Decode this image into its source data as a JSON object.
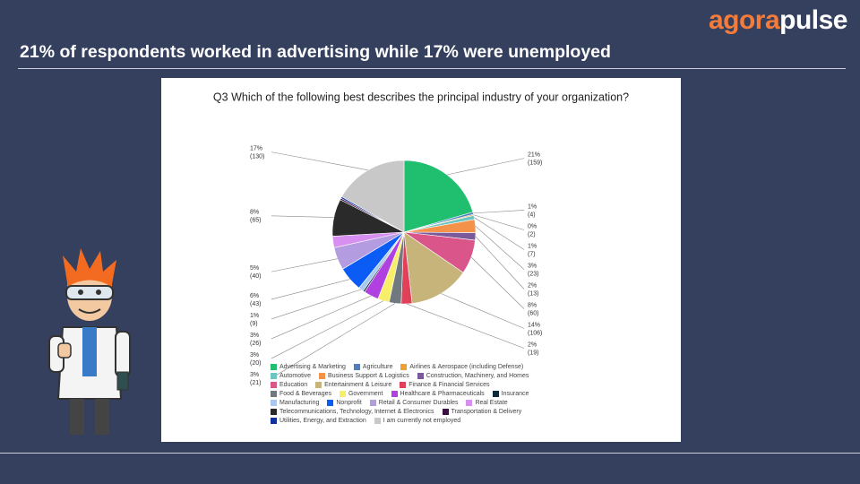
{
  "logo": {
    "part1": "agora",
    "part2": "pulse"
  },
  "slide_title": "21% of respondents worked in advertising while 17% were unemployed",
  "chart_data": {
    "type": "pie",
    "title": "Q3 Which of the following best describes the principal industry of your organization?",
    "categories": [
      "Advertising & Marketing",
      "Agriculture",
      "Airlines & Aerospace (including Defense)",
      "Automotive",
      "Business Support & Logistics",
      "Construction, Machinery, and Homes",
      "Education",
      "Entertainment & Leisure",
      "Finance & Financial Services",
      "Food & Beverages",
      "Government",
      "Healthcare & Pharmaceuticals",
      "Insurance",
      "Manufacturing",
      "Nonprofit",
      "Retail & Consumer Durables",
      "Real Estate",
      "Telecommunications, Technology, Internet & Electronics",
      "Transportation & Delivery",
      "Utilities, Energy, and Extraction",
      "I am currently not employed"
    ],
    "colors": [
      "#1fbf6f",
      "#4f7fbf",
      "#f0a030",
      "#6cc5c0",
      "#f5924a",
      "#7a5a9a",
      "#d9558a",
      "#c7b47a",
      "#e0405a",
      "#707880",
      "#f7ef6a",
      "#b040e0",
      "#0d2a3a",
      "#a8c8f0",
      "#0a5cf5",
      "#b49ce0",
      "#d890f0",
      "#2a2a2a",
      "#3a1040",
      "#1030a0",
      "#c8c8c8"
    ],
    "values": [
      159,
      4,
      2,
      7,
      23,
      13,
      60,
      106,
      19,
      21,
      20,
      26,
      3,
      9,
      43,
      40,
      20,
      65,
      3,
      3,
      130
    ],
    "value_labels": [
      "(159)",
      "(4)",
      "(2)",
      "(7)",
      "(23)",
      "(13)",
      "(60)",
      "(106)",
      "(19)",
      "(21)",
      "(20)",
      "(26)",
      null,
      "(9)",
      "(43)",
      "(40)",
      null,
      "(65)",
      null,
      null,
      "(130)"
    ],
    "percent_labels": [
      "21%",
      "1%",
      "0%",
      "1%",
      "3%",
      "2%",
      "8%",
      "14%",
      "2%",
      "3%",
      "3%",
      "3%",
      null,
      "1%",
      "6%",
      "5%",
      null,
      "8%",
      null,
      null,
      "17%"
    ]
  }
}
